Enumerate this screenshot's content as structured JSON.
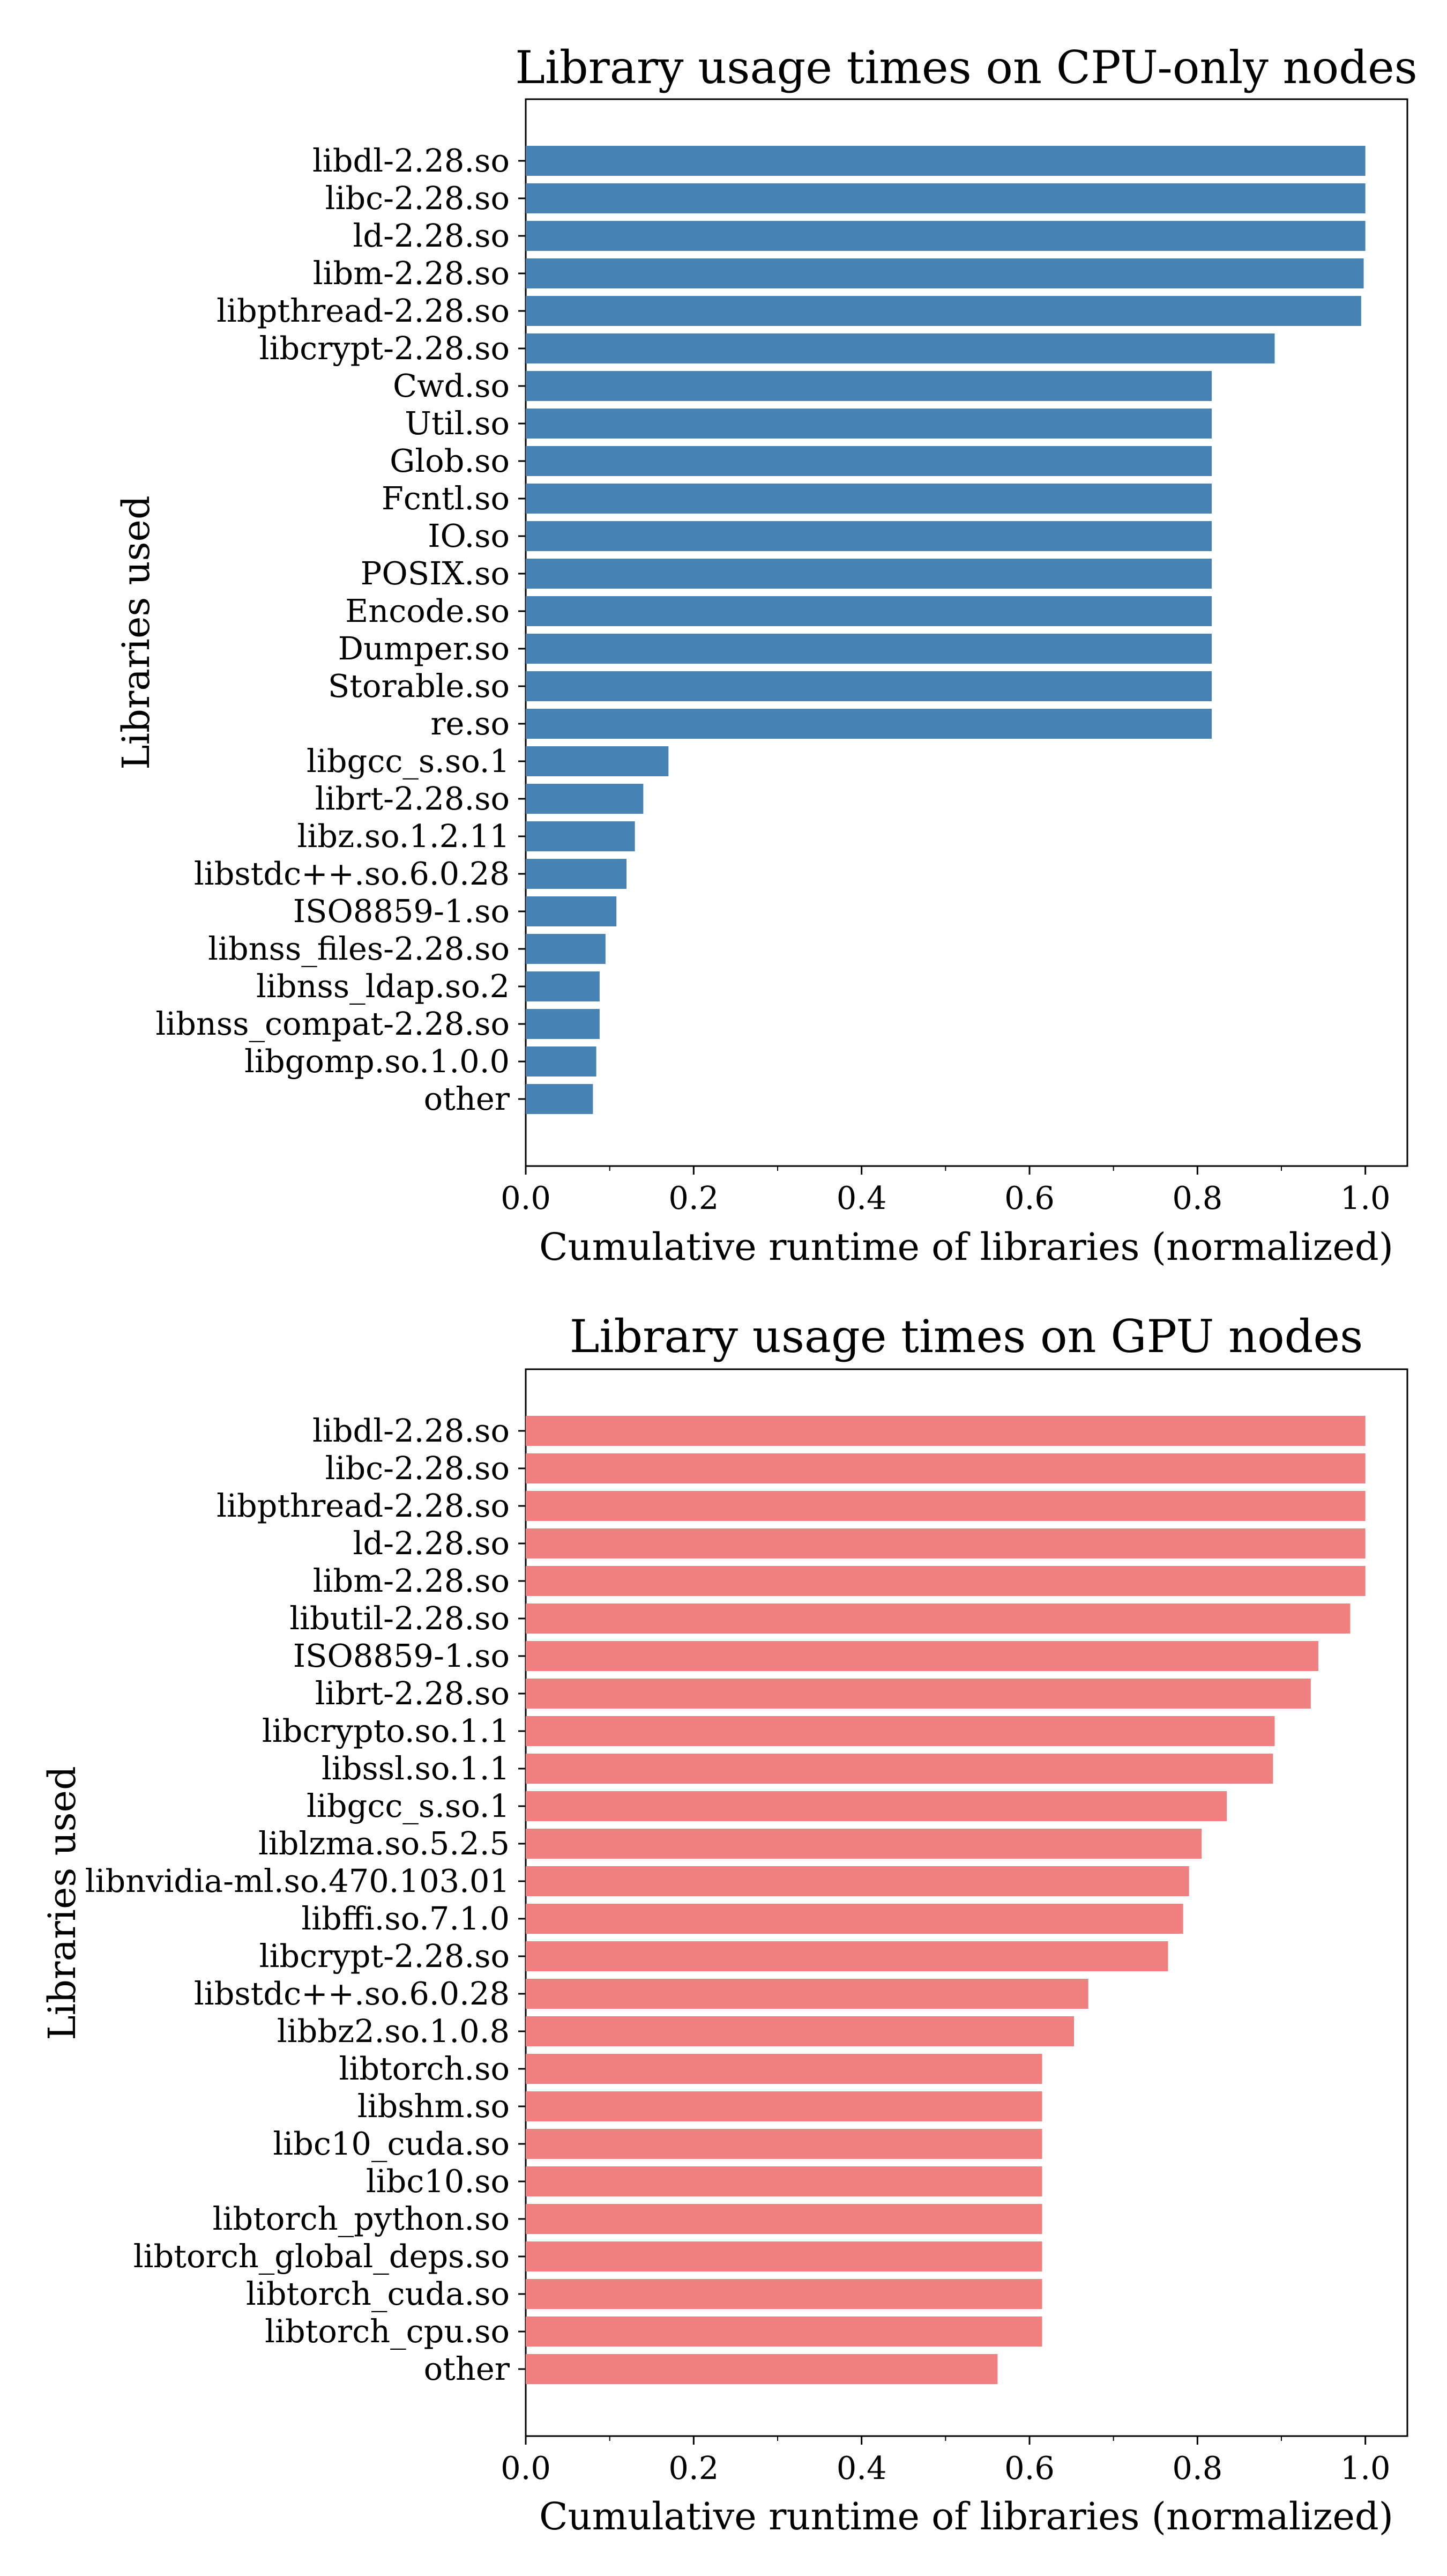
{
  "chart_data": [
    {
      "type": "bar",
      "orientation": "horizontal",
      "title": "Library usage times on CPU-only nodes",
      "xlabel": "Cumulative runtime of libraries (normalized)",
      "ylabel": "Libraries used",
      "xlim": [
        0.0,
        1.05
      ],
      "xticks": [
        "0.0",
        "0.2",
        "0.4",
        "0.6",
        "0.8",
        "1.0"
      ],
      "color": "#4682b4",
      "grid": false,
      "categories": [
        "libdl-2.28.so",
        "libc-2.28.so",
        "ld-2.28.so",
        "libm-2.28.so",
        "libpthread-2.28.so",
        "libcrypt-2.28.so",
        "Cwd.so",
        "Util.so",
        "Glob.so",
        "Fcntl.so",
        "IO.so",
        "POSIX.so",
        "Encode.so",
        "Dumper.so",
        "Storable.so",
        "re.so",
        "libgcc_s.so.1",
        "librt-2.28.so",
        "libz.so.1.2.11",
        "libstdc++.so.6.0.28",
        "ISO8859-1.so",
        "libnss_files-2.28.so",
        "libnss_ldap.so.2",
        "libnss_compat-2.28.so",
        "libgomp.so.1.0.0",
        "other"
      ],
      "values": [
        1.0,
        1.0,
        1.0,
        0.998,
        0.995,
        0.892,
        0.817,
        0.817,
        0.817,
        0.817,
        0.817,
        0.817,
        0.817,
        0.817,
        0.817,
        0.817,
        0.17,
        0.14,
        0.13,
        0.12,
        0.108,
        0.095,
        0.088,
        0.088,
        0.084,
        0.08
      ]
    },
    {
      "type": "bar",
      "orientation": "horizontal",
      "title": "Library usage times on GPU nodes",
      "xlabel": "Cumulative runtime of libraries (normalized)",
      "ylabel": "Libraries used",
      "xlim": [
        0.0,
        1.05
      ],
      "xticks": [
        "0.0",
        "0.2",
        "0.4",
        "0.6",
        "0.8",
        "1.0"
      ],
      "color": "#f08080",
      "grid": false,
      "categories": [
        "libdl-2.28.so",
        "libc-2.28.so",
        "libpthread-2.28.so",
        "ld-2.28.so",
        "libm-2.28.so",
        "libutil-2.28.so",
        "ISO8859-1.so",
        "librt-2.28.so",
        "libcrypto.so.1.1",
        "libssl.so.1.1",
        "libgcc_s.so.1",
        "liblzma.so.5.2.5",
        "libnvidia-ml.so.470.103.01",
        "libffi.so.7.1.0",
        "libcrypt-2.28.so",
        "libstdc++.so.6.0.28",
        "libbz2.so.1.0.8",
        "libtorch.so",
        "libshm.so",
        "libc10_cuda.so",
        "libc10.so",
        "libtorch_python.so",
        "libtorch_global_deps.so",
        "libtorch_cuda.so",
        "libtorch_cpu.so",
        "other"
      ],
      "values": [
        1.0,
        1.0,
        1.0,
        1.0,
        1.0,
        0.982,
        0.944,
        0.935,
        0.892,
        0.89,
        0.835,
        0.805,
        0.79,
        0.783,
        0.765,
        0.67,
        0.653,
        0.615,
        0.615,
        0.615,
        0.615,
        0.615,
        0.615,
        0.615,
        0.615,
        0.562
      ]
    }
  ]
}
